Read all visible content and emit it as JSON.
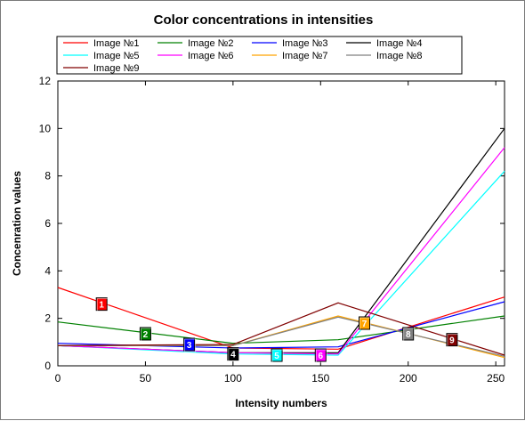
{
  "chart_data": {
    "type": "line",
    "title": "Color concentrations in intensities",
    "xlabel": "Intensity numbers",
    "ylabel": "Concenration values",
    "xlim": [
      0,
      255
    ],
    "ylim": [
      0,
      12
    ],
    "xticks": [
      0,
      50,
      100,
      150,
      200,
      250
    ],
    "yticks": [
      0,
      2,
      4,
      6,
      8,
      10,
      12
    ],
    "grid": false,
    "legend_position": "top",
    "series": [
      {
        "name": "Image №1",
        "color": "#ff0000",
        "x": [
          0,
          100,
          160,
          255
        ],
        "y": [
          3.3,
          0.75,
          0.7,
          2.9
        ],
        "marker": {
          "label": "1",
          "x": 25,
          "y": 2.6
        }
      },
      {
        "name": "Image №2",
        "color": "#008000",
        "x": [
          0,
          100,
          160,
          255
        ],
        "y": [
          1.85,
          0.95,
          1.1,
          2.1
        ],
        "marker": {
          "label": "2",
          "x": 50,
          "y": 1.35
        }
      },
      {
        "name": "Image №3",
        "color": "#0000ff",
        "x": [
          0,
          100,
          160,
          255
        ],
        "y": [
          0.95,
          0.75,
          0.8,
          2.7
        ],
        "marker": {
          "label": "3",
          "x": 75,
          "y": 0.9
        }
      },
      {
        "name": "Image №4",
        "color": "#000000",
        "x": [
          0,
          100,
          160,
          255
        ],
        "y": [
          0.85,
          0.55,
          0.55,
          10.0
        ],
        "marker": {
          "label": "4",
          "x": 100,
          "y": 0.5
        }
      },
      {
        "name": "Image №5",
        "color": "#00ffff",
        "x": [
          0,
          100,
          160,
          255
        ],
        "y": [
          0.85,
          0.5,
          0.45,
          8.2
        ],
        "marker": {
          "label": "5",
          "x": 125,
          "y": 0.45
        }
      },
      {
        "name": "Image №6",
        "color": "#ff00ff",
        "x": [
          0,
          100,
          160,
          255
        ],
        "y": [
          0.85,
          0.55,
          0.5,
          9.2
        ],
        "marker": {
          "label": "6",
          "x": 150,
          "y": 0.45
        }
      },
      {
        "name": "Image №7",
        "color": "#ffa500",
        "x": [
          0,
          100,
          160,
          255
        ],
        "y": [
          0.85,
          0.85,
          2.1,
          0.35
        ],
        "marker": {
          "label": "7",
          "x": 175,
          "y": 1.8
        }
      },
      {
        "name": "Image №8",
        "color": "#808080",
        "x": [
          0,
          100,
          160,
          255
        ],
        "y": [
          0.85,
          0.85,
          2.05,
          0.4
        ],
        "marker": {
          "label": "8",
          "x": 200,
          "y": 1.35
        }
      },
      {
        "name": "Image №9",
        "color": "#800000",
        "x": [
          0,
          100,
          160,
          255
        ],
        "y": [
          0.85,
          0.9,
          2.65,
          0.45
        ],
        "marker": {
          "label": "9",
          "x": 225,
          "y": 1.1
        }
      }
    ]
  }
}
